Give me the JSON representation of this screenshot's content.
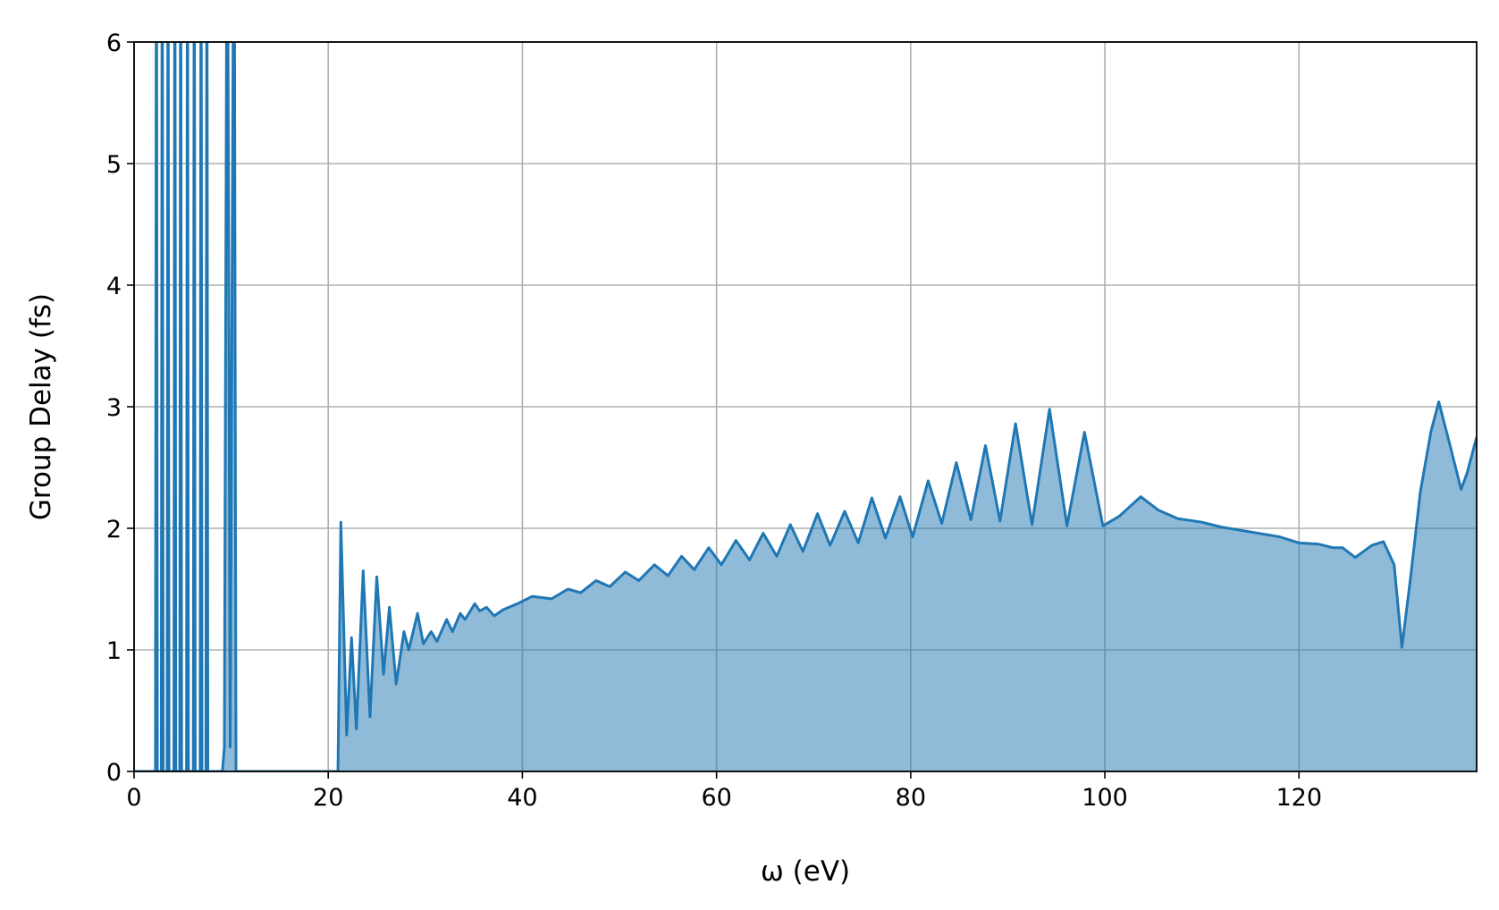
{
  "chart_data": {
    "type": "area",
    "xlabel": "ω (eV)",
    "ylabel": "Group Delay (fs)",
    "color": "#1f77b4",
    "fill_alpha": 0.5,
    "grid": true,
    "xlim": [
      0,
      138.3
    ],
    "ylim": [
      0,
      6
    ],
    "xticks": [
      0,
      20,
      40,
      60,
      80,
      100,
      120
    ],
    "yticks": [
      0,
      1,
      2,
      3,
      4,
      5,
      6
    ],
    "x": [
      0,
      2.2,
      2.3,
      2.4,
      2.8,
      2.9,
      3.0,
      3.4,
      3.5,
      3.6,
      4.1,
      4.2,
      4.3,
      4.7,
      4.8,
      4.9,
      5.4,
      5.5,
      5.6,
      6.1,
      6.2,
      6.3,
      6.8,
      6.9,
      7.0,
      7.4,
      7.5,
      7.6,
      9.1,
      9.3,
      9.6,
      9.9,
      10.3,
      10.5,
      21.0,
      21.3,
      21.9,
      22.4,
      22.9,
      23.6,
      24.3,
      25.0,
      25.7,
      26.3,
      27.0,
      27.8,
      28.3,
      29.2,
      29.8,
      30.6,
      31.2,
      32.2,
      32.8,
      33.6,
      34.1,
      35.1,
      35.6,
      36.3,
      37.1,
      38.0,
      39.5,
      41.0,
      43.0,
      44.7,
      46.0,
      47.6,
      49.0,
      50.6,
      52.0,
      53.6,
      55.0,
      56.4,
      57.7,
      59.2,
      60.5,
      62.0,
      63.4,
      64.8,
      66.2,
      67.6,
      68.9,
      70.4,
      71.7,
      73.2,
      74.6,
      76.0,
      77.4,
      78.9,
      80.2,
      81.8,
      83.2,
      84.7,
      86.2,
      87.7,
      89.2,
      90.8,
      92.5,
      94.3,
      96.1,
      97.9,
      99.8,
      101.5,
      103.7,
      105.5,
      107.5,
      110.0,
      112.0,
      115.0,
      118.0,
      120.0,
      122.0,
      123.5,
      124.5,
      125.8,
      127.5,
      128.7,
      129.8,
      130.6,
      131.5,
      132.5,
      133.6,
      134.4,
      135.5,
      136.7,
      137.3,
      138.3
    ],
    "values": [
      0,
      0,
      8,
      0,
      0,
      8,
      0,
      0,
      8,
      0,
      0,
      8,
      0,
      0,
      8,
      0,
      0,
      8,
      0,
      0,
      8,
      0,
      0,
      8,
      0,
      0,
      8,
      0,
      0,
      0.2,
      8,
      0.2,
      8,
      0,
      0,
      2.05,
      0.3,
      1.1,
      0.35,
      1.65,
      0.45,
      1.6,
      0.8,
      1.35,
      0.72,
      1.15,
      1.0,
      1.3,
      1.05,
      1.15,
      1.07,
      1.25,
      1.15,
      1.3,
      1.25,
      1.38,
      1.32,
      1.35,
      1.28,
      1.33,
      1.38,
      1.44,
      1.42,
      1.5,
      1.47,
      1.57,
      1.52,
      1.64,
      1.57,
      1.7,
      1.61,
      1.77,
      1.66,
      1.84,
      1.7,
      1.9,
      1.74,
      1.96,
      1.77,
      2.03,
      1.81,
      2.12,
      1.86,
      2.14,
      1.88,
      2.25,
      1.92,
      2.26,
      1.93,
      2.39,
      2.04,
      2.54,
      2.07,
      2.68,
      2.06,
      2.86,
      2.03,
      2.98,
      2.02,
      2.79,
      2.02,
      2.1,
      2.26,
      2.15,
      2.08,
      2.05,
      2.01,
      1.97,
      1.93,
      1.88,
      1.87,
      1.84,
      1.84,
      1.76,
      1.86,
      1.89,
      1.7,
      1.02,
      1.6,
      2.3,
      2.8,
      3.04,
      2.7,
      2.32,
      2.45,
      2.75
    ]
  }
}
